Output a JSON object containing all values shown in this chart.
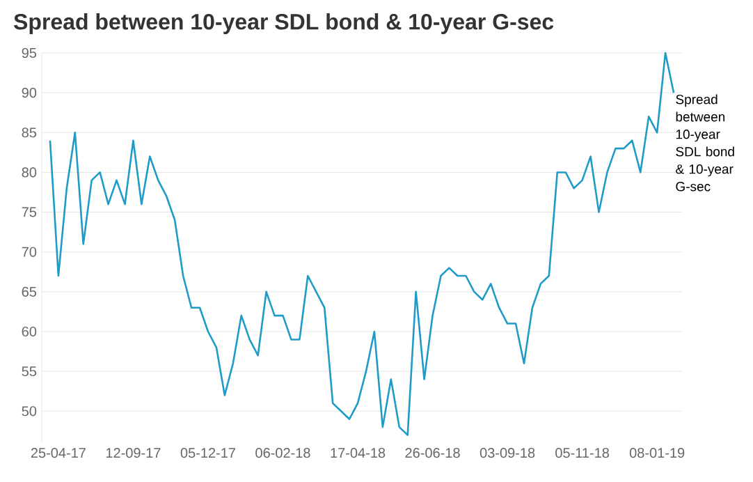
{
  "chart_data": {
    "type": "line",
    "title": "Spread between 10-year SDL bond & 10-year G-sec",
    "categories": [
      null,
      "25-04-17",
      null,
      null,
      null,
      null,
      null,
      null,
      null,
      null,
      "12-09-17",
      null,
      null,
      null,
      null,
      null,
      null,
      null,
      null,
      "05-12-17",
      null,
      null,
      null,
      null,
      null,
      null,
      null,
      null,
      "06-02-18",
      null,
      null,
      null,
      null,
      null,
      null,
      null,
      null,
      "17-04-18",
      null,
      null,
      null,
      null,
      null,
      null,
      null,
      null,
      "26-06-18",
      null,
      null,
      null,
      null,
      null,
      null,
      null,
      null,
      "03-09-18",
      null,
      null,
      null,
      null,
      null,
      null,
      null,
      null,
      "05-11-18",
      null,
      null,
      null,
      null,
      null,
      null,
      null,
      null,
      "08-01-19",
      null,
      null
    ],
    "series": [
      {
        "name": "Spread between 10-year SDL bond & 10-year G-sec",
        "color": "#1f9bc8",
        "values": [
          84,
          67,
          78,
          85,
          71,
          79,
          80,
          76,
          79,
          76,
          84,
          76,
          82,
          79,
          77,
          74,
          67,
          63,
          63,
          60,
          58,
          52,
          56,
          62,
          59,
          57,
          65,
          62,
          62,
          59,
          59,
          67,
          65,
          63,
          51,
          50,
          49,
          51,
          55,
          60,
          48,
          54,
          48,
          47,
          65,
          54,
          62,
          67,
          68,
          67,
          67,
          65,
          64,
          66,
          63,
          61,
          61,
          56,
          63,
          66,
          67,
          80,
          80,
          78,
          79,
          82,
          75,
          80,
          83,
          83,
          84,
          80,
          87,
          85,
          95,
          90
        ]
      }
    ],
    "ylim": [
      46,
      95
    ],
    "yticks": [
      50,
      55,
      60,
      65,
      70,
      75,
      80,
      85,
      90,
      95
    ],
    "grid": "y",
    "marker": "none",
    "line_style": "solid"
  }
}
